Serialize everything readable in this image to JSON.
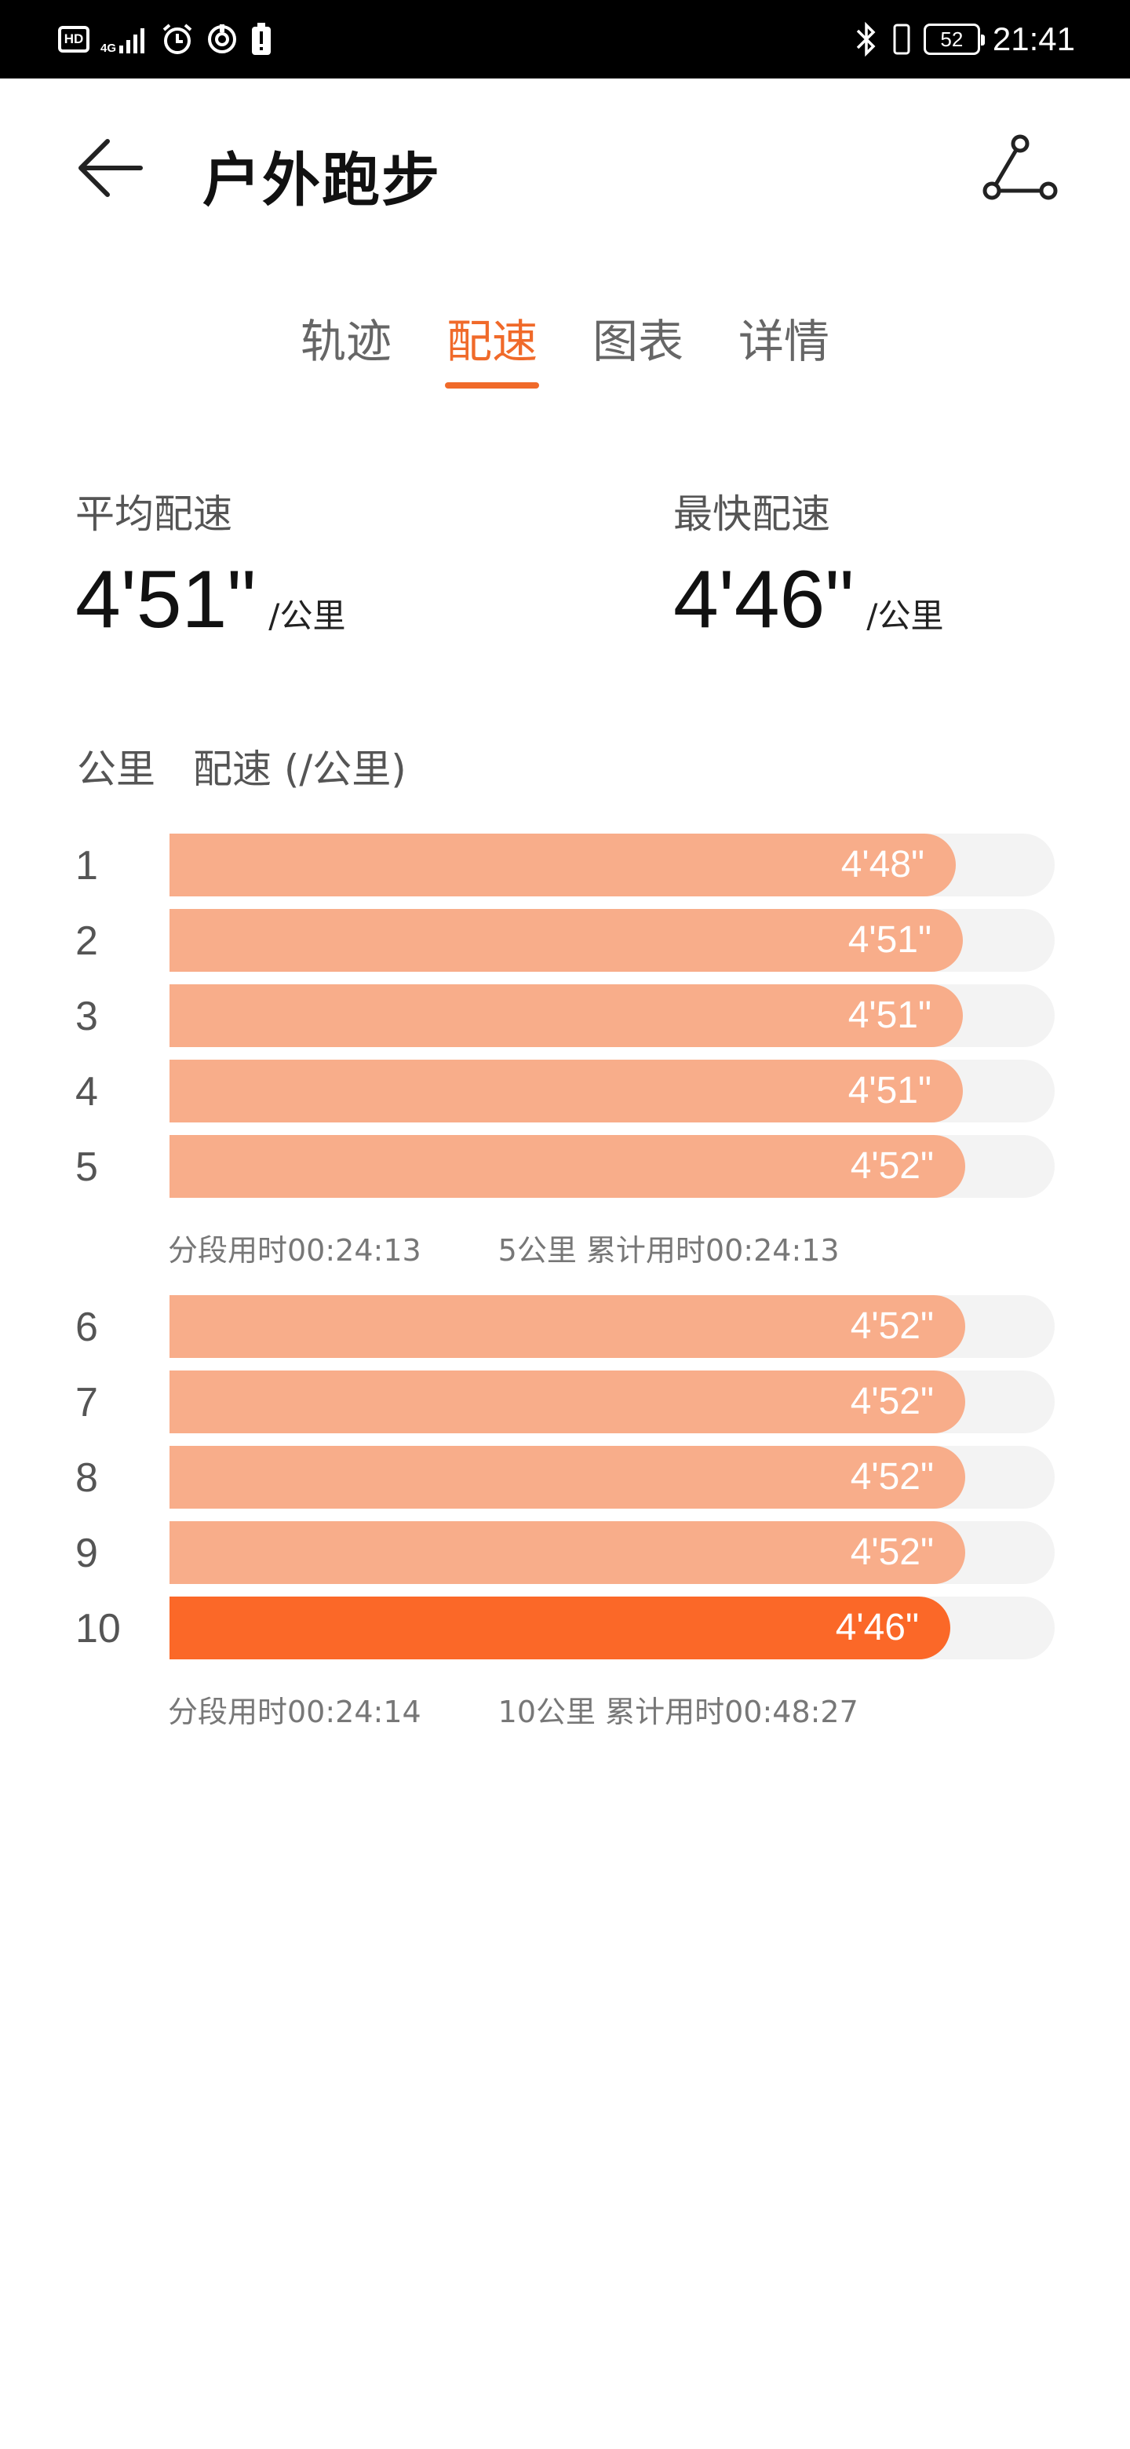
{
  "status_bar": {
    "hd": "HD",
    "network": "4G",
    "battery": "52",
    "time": "21:41"
  },
  "header": {
    "title": "户外跑步"
  },
  "tabs": [
    {
      "label": "轨迹",
      "active": false
    },
    {
      "label": "配速",
      "active": true
    },
    {
      "label": "图表",
      "active": false
    },
    {
      "label": "详情",
      "active": false
    }
  ],
  "summary": {
    "avg_label": "平均配速",
    "avg_value": "4'51\"",
    "avg_unit": "/公里",
    "best_label": "最快配速",
    "best_value": "4'46\"",
    "best_unit": "/公里"
  },
  "table": {
    "col_km": "公里",
    "col_pace": "配速 (/公里)"
  },
  "km_splits": [
    {
      "km": "1",
      "pace": "4'48\"",
      "fill": 0.888,
      "fastest": false
    },
    {
      "km": "2",
      "pace": "4'51\"",
      "fill": 0.896,
      "fastest": false
    },
    {
      "km": "3",
      "pace": "4'51\"",
      "fill": 0.896,
      "fastest": false
    },
    {
      "km": "4",
      "pace": "4'51\"",
      "fill": 0.896,
      "fastest": false
    },
    {
      "km": "5",
      "pace": "4'52\"",
      "fill": 0.899,
      "fastest": false
    },
    {
      "km": "6",
      "pace": "4'52\"",
      "fill": 0.899,
      "fastest": false
    },
    {
      "km": "7",
      "pace": "4'52\"",
      "fill": 0.899,
      "fastest": false
    },
    {
      "km": "8",
      "pace": "4'52\"",
      "fill": 0.899,
      "fastest": false
    },
    {
      "km": "9",
      "pace": "4'52\"",
      "fill": 0.899,
      "fastest": false
    },
    {
      "km": "10",
      "pace": "4'46\"",
      "fill": 0.882,
      "fastest": true
    }
  ],
  "segments": [
    {
      "split_time": "分段用时00:24:13",
      "cumulative": "5公里 累计用时00:24:13"
    },
    {
      "split_time": "分段用时00:24:14",
      "cumulative": "10公里 累计用时00:48:27"
    }
  ],
  "colors": {
    "accent": "#f06a2a",
    "bar": "#f8ad8a",
    "bar_fastest": "#fb6828",
    "track": "#f3f3f3"
  }
}
